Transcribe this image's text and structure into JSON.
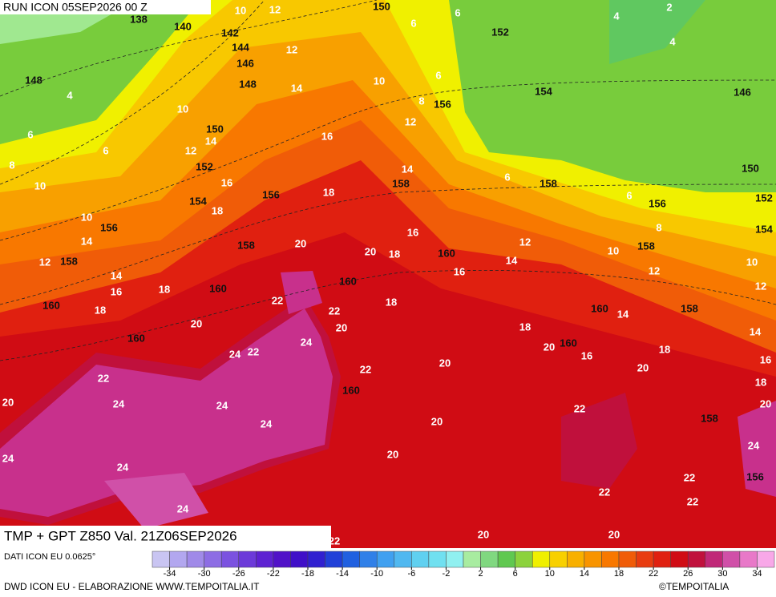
{
  "header": {
    "run": "RUN ICON 05SEP2026 00 Z"
  },
  "footer": {
    "title": "TMP + GPT Z850 Val. 21Z06SEP2026",
    "data_source": "DATI ICON EU 0.0625°",
    "credit": "DWD ICON EU - ELABORAZIONE WWW.TEMPOITALIA.IT",
    "copyright": "©TEMPOITALIA"
  },
  "map": {
    "geopotential_labels": [
      138,
      140,
      142,
      144,
      146,
      148,
      148,
      150,
      152,
      154,
      156,
      146,
      150,
      152,
      154,
      156,
      158,
      158,
      150,
      156,
      152,
      154,
      156,
      158,
      158,
      160,
      158,
      160,
      160,
      160,
      160,
      158,
      160,
      160,
      160,
      158,
      156
    ],
    "temperature_labels": [
      10,
      12,
      6,
      4,
      2,
      12,
      4,
      6,
      6,
      10,
      8,
      4,
      10,
      14,
      6,
      12,
      16,
      12,
      14,
      8,
      10,
      6,
      16,
      18,
      14,
      18,
      6,
      6,
      10,
      8,
      20,
      16,
      12,
      10,
      14,
      12,
      20,
      18,
      14,
      12,
      10,
      14,
      16,
      18,
      16,
      12,
      18,
      22,
      22,
      18,
      14,
      20,
      20,
      18,
      14,
      24,
      22,
      24,
      20,
      16,
      18,
      16,
      22,
      22,
      20,
      20,
      18,
      20,
      24,
      24,
      20,
      22,
      20,
      24,
      24,
      24,
      24,
      20,
      22,
      22,
      22,
      24,
      20,
      20,
      22
    ]
  },
  "colorbar": {
    "colors": [
      "#c9c5f2",
      "#b2a7ef",
      "#a08ae8",
      "#8d6de4",
      "#7b52e0",
      "#6c3ad9",
      "#5e22d2",
      "#5112c8",
      "#4010c8",
      "#3020d0",
      "#2040d8",
      "#2060e0",
      "#3080e8",
      "#40a0f0",
      "#50b8f0",
      "#60d0f0",
      "#70e0f0",
      "#90f0f0",
      "#a8eca0",
      "#80d880",
      "#60c850",
      "#8cd23c",
      "#f0f000",
      "#f8d000",
      "#f8b000",
      "#f89400",
      "#f87800",
      "#f05c08",
      "#e83c10",
      "#e02010",
      "#d00c14",
      "#c0103c",
      "#c02878",
      "#d050a8",
      "#e878c8",
      "#f8a8e8"
    ],
    "ticks": [
      -34,
      -30,
      -26,
      -22,
      -18,
      -14,
      -10,
      -6,
      -2,
      2,
      6,
      10,
      14,
      18,
      22,
      26,
      30,
      34
    ]
  }
}
